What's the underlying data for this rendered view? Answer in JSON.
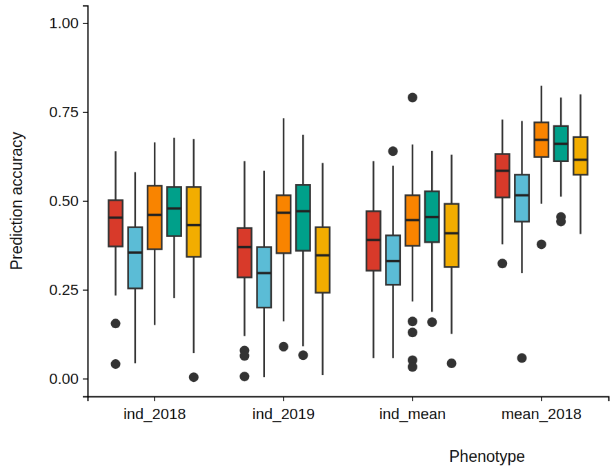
{
  "chart_data": {
    "type": "box",
    "x_label": "Phenotype",
    "y_label": "Prediction accuracy",
    "categories": [
      "ind_2018",
      "ind_2019",
      "ind_mean",
      "mean_2018"
    ],
    "ylim": [
      -0.05,
      1.05
    ],
    "yticks": [
      {
        "value": 0,
        "label": "0.00"
      },
      {
        "value": 0.25,
        "label": "0.25"
      },
      {
        "value": 0.5,
        "label": "0.50"
      },
      {
        "value": 0.75,
        "label": "0.75"
      },
      {
        "value": 1,
        "label": "1.00"
      }
    ],
    "grid": false,
    "series": [
      {
        "color": "#d83a2a",
        "values": [
          {
            "low": 0.234,
            "q1": 0.372,
            "median": 0.453,
            "q3": 0.502,
            "high": 0.64,
            "outliers": [
              0.155,
              0.041
            ]
          },
          {
            "low": 0.12,
            "q1": 0.285,
            "median": 0.37,
            "q3": 0.424,
            "high": 0.612,
            "outliers": [
              0.079,
              0.064,
              0.006
            ]
          },
          {
            "low": 0.058,
            "q1": 0.304,
            "median": 0.39,
            "q3": 0.471,
            "high": 0.612,
            "outliers": []
          },
          {
            "low": 0.378,
            "q1": 0.51,
            "median": 0.585,
            "q3": 0.632,
            "high": 0.729,
            "outliers": [
              0.324
            ]
          }
        ]
      },
      {
        "color": "#5bbcd6",
        "values": [
          {
            "low": 0.043,
            "q1": 0.254,
            "median": 0.355,
            "q3": 0.426,
            "high": 0.581,
            "outliers": []
          },
          {
            "low": 0.004,
            "q1": 0.2,
            "median": 0.297,
            "q3": 0.37,
            "high": 0.585,
            "outliers": []
          },
          {
            "low": 0.058,
            "q1": 0.264,
            "median": 0.331,
            "q3": 0.403,
            "high": 0.599,
            "outliers": [
              0.64
            ]
          },
          {
            "low": 0.297,
            "q1": 0.442,
            "median": 0.516,
            "q3": 0.574,
            "high": 0.725,
            "outliers": [
              0.058
            ]
          }
        ]
      },
      {
        "color": "#f98400",
        "values": [
          {
            "low": 0.151,
            "q1": 0.364,
            "median": 0.461,
            "q3": 0.543,
            "high": 0.665,
            "outliers": []
          },
          {
            "low": 0.161,
            "q1": 0.353,
            "median": 0.467,
            "q3": 0.516,
            "high": 0.733,
            "outliers": [
              0.09
            ]
          },
          {
            "low": 0.217,
            "q1": 0.374,
            "median": 0.446,
            "q3": 0.516,
            "high": 0.659,
            "outliers": [
              0.791,
              0.161,
              0.13,
              0.052,
              0.033
            ]
          },
          {
            "low": 0.492,
            "q1": 0.624,
            "median": 0.672,
            "q3": 0.721,
            "high": 0.824,
            "outliers": [
              0.378
            ]
          }
        ]
      },
      {
        "color": "#00a08a",
        "values": [
          {
            "low": 0.227,
            "q1": 0.401,
            "median": 0.479,
            "q3": 0.539,
            "high": 0.678,
            "outliers": []
          },
          {
            "low": 0.091,
            "q1": 0.36,
            "median": 0.471,
            "q3": 0.545,
            "high": 0.686,
            "outliers": [
              0.066
            ]
          },
          {
            "low": 0.188,
            "q1": 0.384,
            "median": 0.455,
            "q3": 0.527,
            "high": 0.641,
            "outliers": [
              0.159
            ]
          },
          {
            "low": 0.512,
            "q1": 0.612,
            "median": 0.661,
            "q3": 0.711,
            "high": 0.791,
            "outliers": [
              0.455,
              0.442
            ]
          }
        ]
      },
      {
        "color": "#f2ad00",
        "values": [
          {
            "low": 0.072,
            "q1": 0.343,
            "median": 0.432,
            "q3": 0.539,
            "high": 0.674,
            "outliers": [
              0.004
            ]
          },
          {
            "low": 0.01,
            "q1": 0.242,
            "median": 0.347,
            "q3": 0.426,
            "high": 0.607,
            "outliers": []
          },
          {
            "low": 0.126,
            "q1": 0.314,
            "median": 0.409,
            "q3": 0.492,
            "high": 0.63,
            "outliers": [
              0.043
            ]
          },
          {
            "low": 0.407,
            "q1": 0.574,
            "median": 0.616,
            "q3": 0.68,
            "high": 0.8,
            "outliers": []
          }
        ]
      }
    ]
  }
}
